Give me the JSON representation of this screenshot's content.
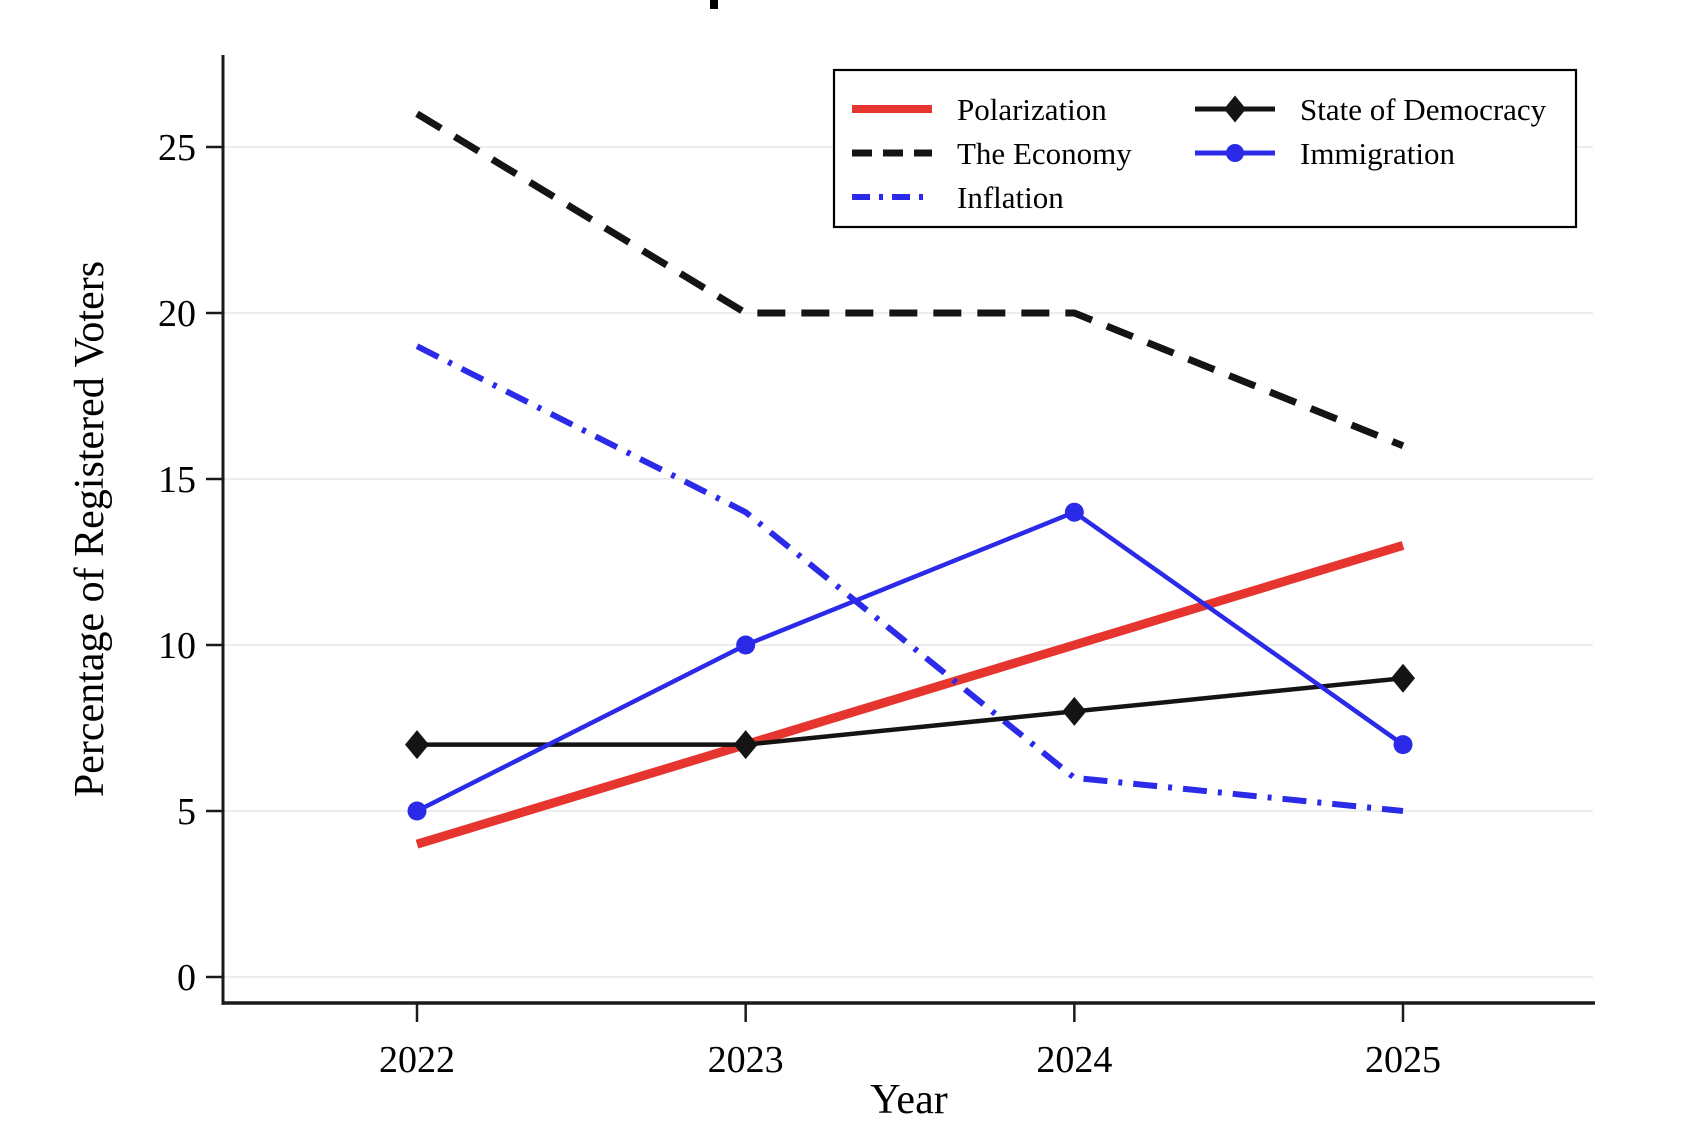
{
  "chart_data": {
    "type": "line",
    "xlabel": "Year",
    "ylabel": "Percentage of Registered Voters",
    "x_values": [
      2022,
      2023,
      2024,
      2025
    ],
    "x_tick_labels": [
      "2022",
      "2023",
      "2024",
      "2025"
    ],
    "y_ticks": [
      0,
      5,
      10,
      15,
      20,
      25
    ],
    "y_tick_labels": [
      "0",
      "5",
      "10",
      "15",
      "20",
      "25"
    ],
    "ylim": [
      -0.8,
      27.8
    ],
    "grid": "horizontal-light",
    "colors": {
      "red": "#e6352e",
      "blue": "#2a2ae8",
      "black": "#141414",
      "grid": "#e7e7e7",
      "axis": "#1a1a1a",
      "legend_border": "#000000",
      "background": "#ffffff"
    },
    "series": [
      {
        "name": "Polarization",
        "values": [
          4,
          7,
          10,
          13
        ],
        "color": "#e6352e",
        "line_style": "solid",
        "marker": "none",
        "line_width": 9
      },
      {
        "name": "The Economy",
        "values": [
          26,
          20,
          20,
          16
        ],
        "color": "#141414",
        "line_style": "dashed",
        "marker": "none",
        "line_width": 7
      },
      {
        "name": "Inflation",
        "values": [
          19,
          14,
          6,
          5
        ],
        "color": "#2a2ae8",
        "line_style": "dashdot",
        "marker": "none",
        "line_width": 6
      },
      {
        "name": "State of Democracy",
        "values": [
          7,
          7,
          8,
          9
        ],
        "color": "#141414",
        "line_style": "solid",
        "marker": "diamond",
        "line_width": 4.5
      },
      {
        "name": "Immigration",
        "values": [
          5,
          10,
          14,
          7
        ],
        "color": "#2a2ae8",
        "line_style": "solid",
        "marker": "circle",
        "line_width": 4.5
      }
    ],
    "legend": {
      "position": "top-right-inside",
      "columns": [
        [
          0,
          1,
          2
        ],
        [
          3,
          4
        ]
      ]
    }
  }
}
